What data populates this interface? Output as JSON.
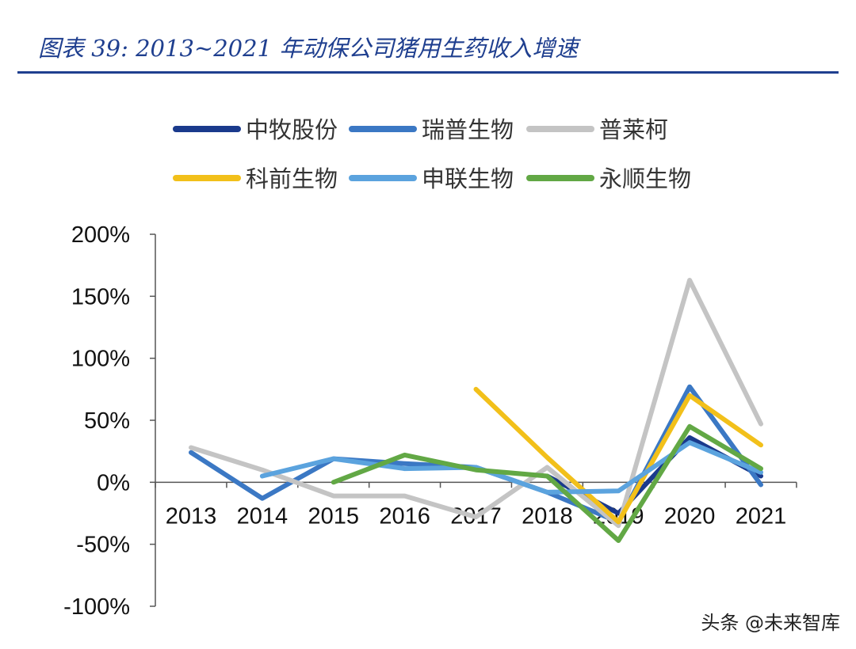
{
  "title": "图表 39:  2013~2021 年动保公司猪用生药收入增速",
  "watermark": "头条 @未来智库",
  "chart_data": {
    "type": "line",
    "title": "2013~2021 年动保公司猪用生药收入增速",
    "xlabel": "",
    "ylabel": "",
    "categories": [
      "2013",
      "2014",
      "2015",
      "2016",
      "2017",
      "2018",
      "2019",
      "2020",
      "2021"
    ],
    "ylim": [
      -100,
      200
    ],
    "yticks": [
      -100,
      -50,
      0,
      50,
      100,
      150,
      200
    ],
    "ytick_labels": [
      "-100%",
      "-50%",
      "0%",
      "50%",
      "100%",
      "150%",
      "200%"
    ],
    "legend_position": "top",
    "series": [
      {
        "name": "中牧股份",
        "color": "#1a3a8c",
        "values": [
          null,
          null,
          null,
          null,
          null,
          5,
          -25,
          36,
          5
        ]
      },
      {
        "name": "瑞普生物",
        "color": "#3b78c4",
        "values": [
          24,
          -13,
          19,
          15,
          12,
          -8,
          -32,
          77,
          -2
        ]
      },
      {
        "name": "普莱柯",
        "color": "#c4c4c4",
        "values": [
          28,
          10,
          -11,
          -11,
          -28,
          12,
          -35,
          163,
          47
        ]
      },
      {
        "name": "科前生物",
        "color": "#f2c01a",
        "values": [
          null,
          null,
          null,
          null,
          75,
          20,
          -32,
          70,
          30
        ]
      },
      {
        "name": "申联生物",
        "color": "#5ba3de",
        "values": [
          null,
          5,
          19,
          11,
          12,
          -8,
          -7,
          32,
          8
        ]
      },
      {
        "name": "永顺生物",
        "color": "#62a845",
        "values": [
          null,
          null,
          0,
          22,
          10,
          5,
          -47,
          45,
          11
        ]
      }
    ]
  }
}
